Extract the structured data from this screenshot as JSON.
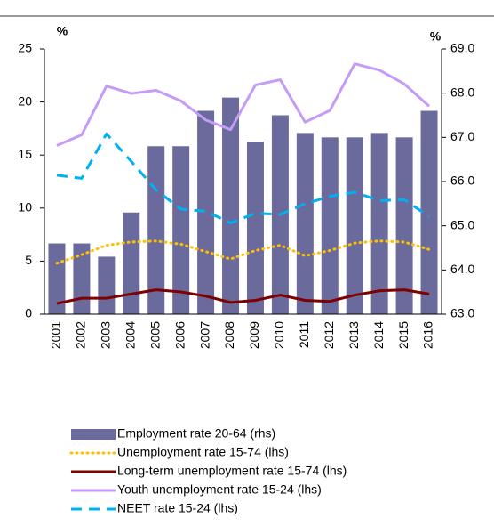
{
  "chart_data": {
    "type": "combo",
    "ylabel": "%",
    "y2label": "%",
    "categories": [
      "2001",
      "2002",
      "2003",
      "2004",
      "2005",
      "2006",
      "2007",
      "2008",
      "2009",
      "2010",
      "2011",
      "2012",
      "2013",
      "2014",
      "2015",
      "2016"
    ],
    "ylim": [
      0,
      25
    ],
    "yticks": [
      0,
      5,
      10,
      15,
      20,
      25
    ],
    "y2lim": [
      63,
      69
    ],
    "y2ticks": [
      {
        "value": 63,
        "label": "63.0"
      },
      {
        "value": 64,
        "label": "64.0"
      },
      {
        "value": 65,
        "label": "65.0"
      },
      {
        "value": 66,
        "label": "66.0"
      },
      {
        "value": 67,
        "label": "67.0"
      },
      {
        "value": 68,
        "label": "68.0"
      },
      {
        "value": 69,
        "label": "69.0"
      }
    ],
    "legend": "bottom",
    "series": [
      {
        "name": "Employment rate 20-64 (rhs)",
        "type": "bar",
        "axis": "y2",
        "color": "#6b6a9c",
        "values": [
          64.6,
          64.6,
          64.3,
          65.3,
          66.8,
          66.8,
          67.6,
          67.9,
          66.9,
          67.5,
          67.1,
          67.0,
          67.0,
          67.1,
          67.0,
          67.6
        ]
      },
      {
        "name": "Unemployment rate 15-74 (lhs)",
        "type": "line",
        "style": "dotted",
        "color": "#ffc000",
        "values": [
          4.8,
          5.6,
          6.5,
          6.8,
          6.9,
          6.6,
          5.9,
          5.2,
          6.0,
          6.5,
          5.5,
          6.0,
          6.7,
          6.9,
          6.8,
          6.1
        ]
      },
      {
        "name": "Long-term unemployment rate 15-74 (lhs)",
        "type": "line",
        "style": "solid",
        "color": "#7f0000",
        "values": [
          1.0,
          1.5,
          1.5,
          1.9,
          2.3,
          2.1,
          1.7,
          1.1,
          1.3,
          1.8,
          1.3,
          1.2,
          1.8,
          2.2,
          2.3,
          1.9
        ]
      },
      {
        "name": "Youth unemployment rate 15-24 (lhs)",
        "type": "line",
        "style": "solid",
        "color": "#c59bfa",
        "values": [
          15.9,
          16.9,
          21.5,
          20.8,
          21.1,
          20.1,
          18.3,
          17.4,
          21.6,
          22.1,
          18.1,
          19.2,
          23.6,
          23.0,
          21.7,
          19.6
        ]
      },
      {
        "name": "NEET rate 15-24 (lhs)",
        "type": "line",
        "style": "dashed",
        "color": "#00b0f0",
        "values": [
          13.1,
          12.8,
          17.0,
          14.4,
          11.7,
          9.9,
          9.7,
          8.6,
          9.5,
          9.4,
          10.4,
          11.1,
          11.5,
          10.7,
          10.8,
          9.2
        ]
      }
    ]
  }
}
